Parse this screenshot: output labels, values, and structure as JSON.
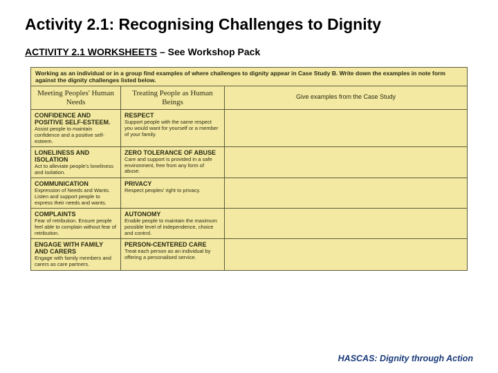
{
  "title": "Activity 2.1:  Recognising Challenges to Dignity",
  "subtitle_underline": "ACTIVITY 2.1 WORKSHEETS",
  "subtitle_rest": " – See Workshop Pack",
  "instruction": "Working as an individual or in a group find examples of where challenges to dignity appear in Case Study B. Write down the examples in note form against the dignity challenges listed below.",
  "headers": {
    "col1": "Meeting Peoples' Human Needs",
    "col2": "Treating People as Human Beings",
    "col3": "Give examples from the Case Study"
  },
  "left": [
    {
      "t": "CONFIDENCE AND POSITIVE SELF-ESTEEM.",
      "d": "Assist people to maintain confidence and a positive self-esteem."
    },
    {
      "t": "LONELINESS AND ISOLATION",
      "d": "Act to alleviate people's loneliness and isolation."
    },
    {
      "t": "COMMUNICATION",
      "d": "Expression of Needs and Wants. Listen and support people to express their needs and wants."
    },
    {
      "t": "COMPLAINTS",
      "d": "Fear of retribution. Ensure people feel able to complain without fear of retribution."
    },
    {
      "t": "ENGAGE WITH FAMILY AND CARERS",
      "d": "Engage with family members and carers as care partners."
    }
  ],
  "mid": [
    {
      "t": "RESPECT",
      "d": "Support people with the same respect you would want for yourself or a member of your family."
    },
    {
      "t": "ZERO TOLERANCE OF ABUSE",
      "d": "Care and support is provided in a safe environment, free from any form of abuse."
    },
    {
      "t": "PRIVACY",
      "d": "Respect peoples' right to privacy."
    },
    {
      "t": "AUTONOMY",
      "d": "Enable people to maintain the maximum possible level of independence, choice and control."
    },
    {
      "t": "PERSON-CENTERED CARE",
      "d": "Treat each person as an individual by offering a personalised service."
    }
  ],
  "footer": "HASCAS: Dignity through Action"
}
